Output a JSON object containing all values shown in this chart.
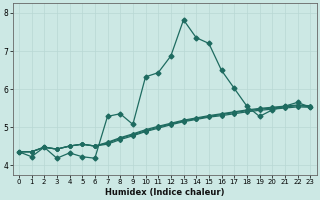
{
  "xlabel": "Humidex (Indice chaleur)",
  "bg_color": "#cce8e4",
  "grid_color": "#b8d8d4",
  "line_color": "#1e6b60",
  "xlim": [
    -0.5,
    23.5
  ],
  "ylim": [
    3.75,
    8.25
  ],
  "yticks": [
    4,
    5,
    6,
    7,
    8
  ],
  "xticks": [
    0,
    1,
    2,
    3,
    4,
    5,
    6,
    7,
    8,
    9,
    10,
    11,
    12,
    13,
    14,
    15,
    16,
    17,
    18,
    19,
    20,
    21,
    22,
    23
  ],
  "series_main": [
    4.35,
    4.22,
    4.47,
    4.18,
    4.32,
    4.22,
    4.18,
    5.28,
    5.35,
    5.07,
    6.32,
    6.43,
    6.87,
    7.82,
    7.35,
    7.2,
    6.49,
    6.02,
    5.55,
    5.28,
    5.45,
    5.55,
    5.65,
    5.52
  ],
  "series_s1": [
    4.35,
    4.35,
    4.47,
    4.42,
    4.5,
    4.55,
    4.5,
    4.55,
    4.67,
    4.77,
    4.88,
    4.97,
    5.06,
    5.14,
    5.2,
    5.26,
    5.3,
    5.35,
    5.4,
    5.44,
    5.47,
    5.5,
    5.53,
    5.52
  ],
  "series_s2": [
    4.35,
    4.35,
    4.47,
    4.42,
    4.5,
    4.55,
    4.5,
    4.58,
    4.7,
    4.8,
    4.9,
    5.0,
    5.08,
    5.16,
    5.22,
    5.28,
    5.33,
    5.38,
    5.43,
    5.47,
    5.5,
    5.53,
    5.56,
    5.54
  ],
  "series_s3": [
    4.35,
    4.35,
    4.47,
    4.42,
    4.5,
    4.55,
    4.5,
    4.6,
    4.72,
    4.82,
    4.93,
    5.02,
    5.1,
    5.18,
    5.24,
    5.3,
    5.35,
    5.4,
    5.45,
    5.49,
    5.52,
    5.55,
    5.58,
    5.56
  ]
}
